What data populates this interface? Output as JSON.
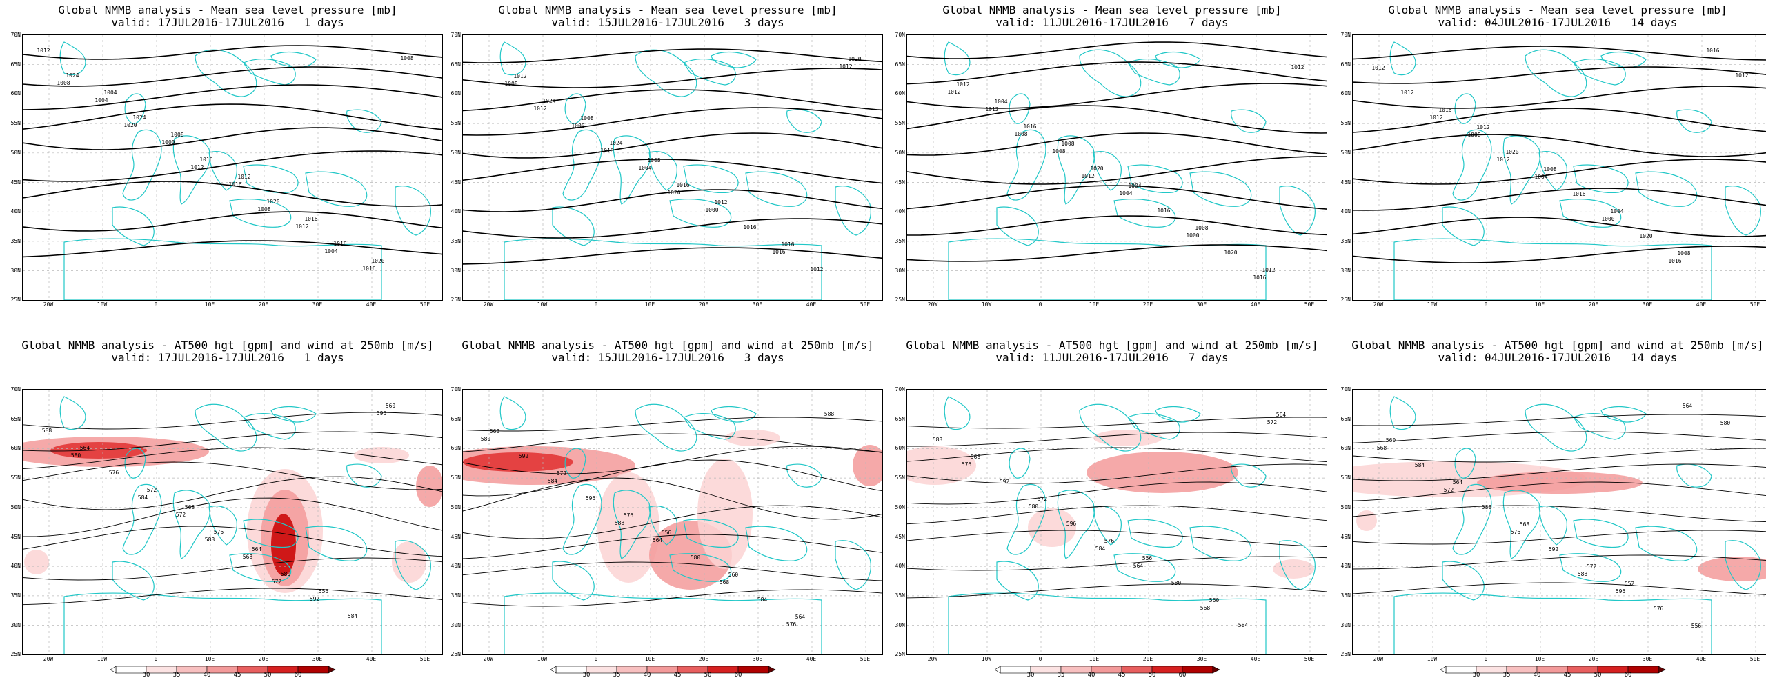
{
  "colors": {
    "coast": "#21c7c7",
    "contour": "#000000",
    "grid": "#b8b8b8",
    "wind_light": "#fbd3d3",
    "wind_mid": "#f39a9a",
    "wind_strong": "#e03030",
    "wind_max": "#c80000"
  },
  "rows": [
    {
      "title_line1": "Global NMMB analysis - Mean sea level pressure [mb]",
      "panels": [
        {
          "valid": "valid: 17JUL2016-17JUL2016   1 days",
          "labels": [
            "1012",
            "1004",
            "1008",
            "1012",
            "1016",
            "1020",
            "1024",
            "1024",
            "1016",
            "1020",
            "1016",
            "1008",
            "1004",
            "1000",
            "1016",
            "1012",
            "1016",
            "1008",
            "1020",
            "1012",
            "1008",
            "1004"
          ]
        },
        {
          "valid": "valid: 15JUL2016-17JUL2016   3 days",
          "labels": [
            "1012",
            "1008",
            "1008",
            "1012",
            "1016",
            "1020",
            "1024",
            "1024",
            "1016",
            "1016",
            "1012",
            "1008",
            "1000",
            "1004",
            "1000",
            "1016",
            "1012",
            "1012",
            "1016",
            "1020"
          ]
        },
        {
          "valid": "valid: 11JUL2016-17JUL2016   7 days",
          "labels": [
            "1004",
            "1008",
            "1004",
            "1008",
            "1012",
            "1012",
            "1016",
            "1020",
            "1016",
            "1020",
            "1012",
            "1012",
            "1008",
            "1004",
            "1000",
            "1016",
            "1012",
            "1008",
            "1012"
          ]
        },
        {
          "valid": "valid: 04JUL2016-17JUL2016   14 days",
          "labels": [
            "1012",
            "1008",
            "1004",
            "1008",
            "1012",
            "1016",
            "1020",
            "1016",
            "1020",
            "1016",
            "1012",
            "1008",
            "1004",
            "1000",
            "1016",
            "1012",
            "1012",
            "1012"
          ]
        }
      ]
    },
    {
      "title_line1": "Global NMMB analysis - AT500 hgt [gpm] and wind at 250mb [m/s]",
      "panels": [
        {
          "valid": "valid: 17JUL2016-17JUL2016   1 days",
          "labels": [
            "568",
            "564",
            "556",
            "560",
            "564",
            "572",
            "576",
            "580",
            "584",
            "588",
            "576",
            "572",
            "568",
            "592",
            "596",
            "580",
            "584",
            "588",
            "572"
          ]
        },
        {
          "valid": "valid: 15JUL2016-17JUL2016   3 days",
          "labels": [
            "556",
            "560",
            "564",
            "568",
            "572",
            "576",
            "580",
            "584",
            "588",
            "592",
            "596",
            "564",
            "568",
            "576",
            "580",
            "584",
            "588"
          ]
        },
        {
          "valid": "valid: 11JUL2016-17JUL2016   7 days",
          "labels": [
            "556",
            "560",
            "564",
            "568",
            "572",
            "576",
            "580",
            "584",
            "588",
            "592",
            "596",
            "564",
            "568",
            "572",
            "576",
            "580",
            "584"
          ]
        },
        {
          "valid": "valid: 04JUL2016-17JUL2016   14 days",
          "labels": [
            "552",
            "556",
            "560",
            "564",
            "568",
            "572",
            "576",
            "580",
            "584",
            "588",
            "592",
            "596",
            "564",
            "568",
            "572",
            "576",
            "588"
          ]
        }
      ]
    }
  ],
  "axes": {
    "lat_labels": [
      "70N",
      "65N",
      "60N",
      "55N",
      "50N",
      "45N",
      "40N",
      "35N",
      "30N",
      "25N"
    ],
    "lon_labels": [
      "20W",
      "10W",
      "0",
      "10E",
      "20E",
      "30E",
      "40E",
      "50E"
    ]
  },
  "colorbar": {
    "labels": [
      "30",
      "35",
      "40",
      "45",
      "50",
      "60"
    ]
  }
}
